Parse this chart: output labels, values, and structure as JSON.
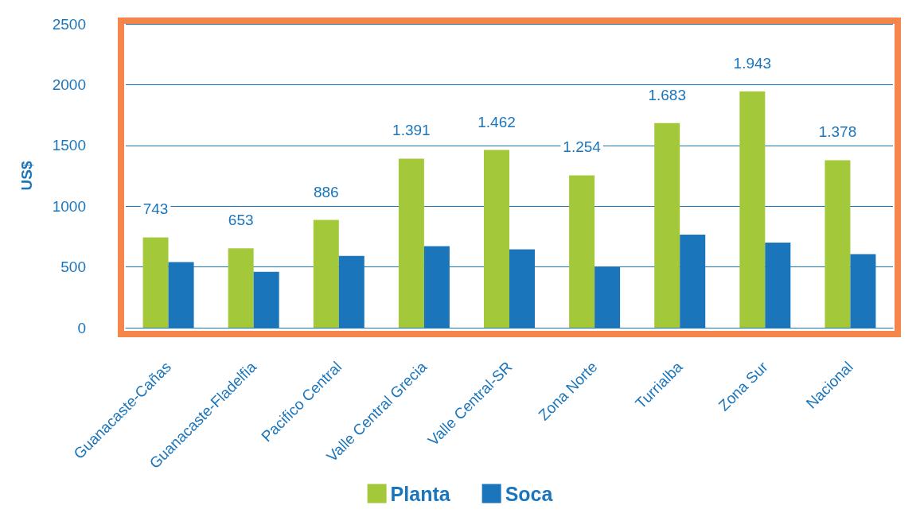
{
  "chart_data": {
    "type": "bar",
    "ylabel": "US$",
    "categories": [
      "Guanacaste-Cañas",
      "Guanacaste-Fladelfia",
      "Pacifico Central",
      "Valle Central Grecia",
      "Valle Central-SR",
      "Zona Norte",
      "Turrialba",
      "Zona Sur",
      "Nacional"
    ],
    "series": [
      {
        "name": "Planta",
        "color": "#a3c93a",
        "values": [
          743,
          653,
          886,
          1391,
          1462,
          1254,
          1683,
          1943,
          1378
        ],
        "value_labels": [
          "743",
          "653",
          "886",
          "1.391",
          "1.462",
          "1.254",
          "1.683",
          "1.943",
          "1.378"
        ]
      },
      {
        "name": "Soca",
        "color": "#1b75bb",
        "values": [
          540,
          460,
          590,
          670,
          645,
          500,
          765,
          700,
          605
        ]
      }
    ],
    "ylim": [
      0,
      2500
    ],
    "yticks": [
      0,
      500,
      1000,
      1500,
      2000,
      2500
    ],
    "grid": "y",
    "legend": "bottom"
  }
}
